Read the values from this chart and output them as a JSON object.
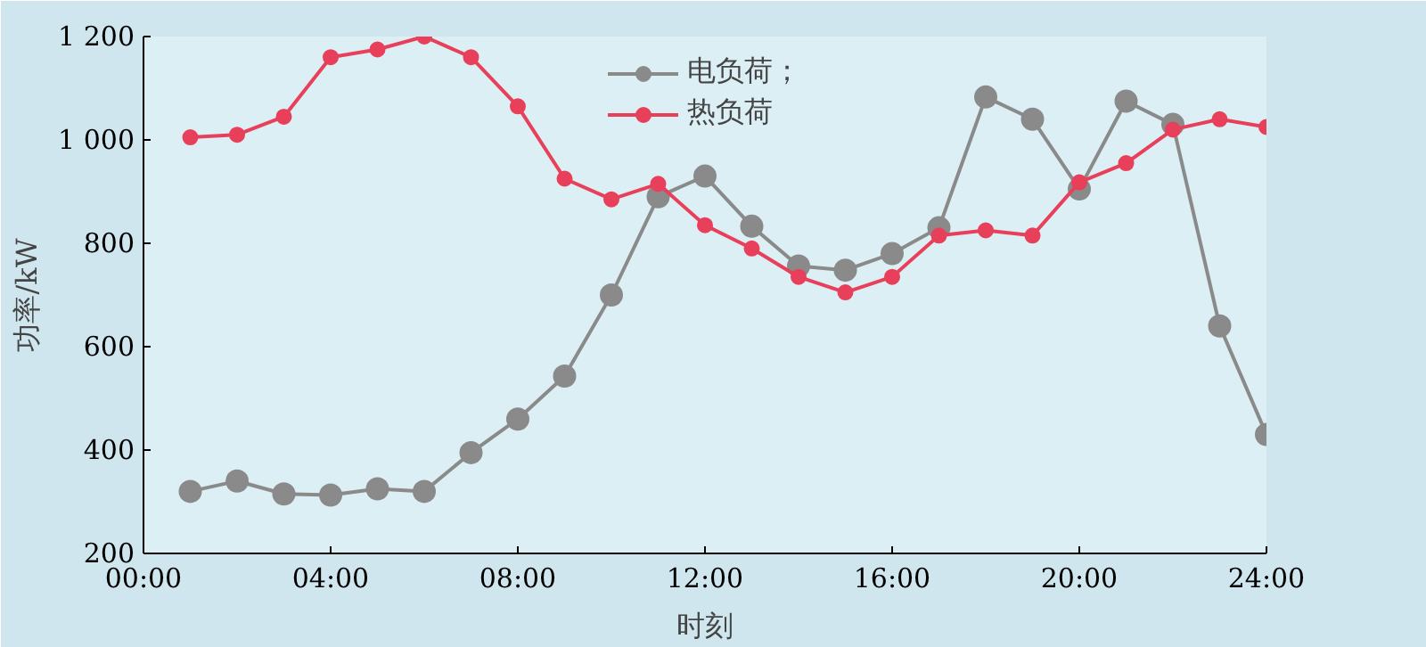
{
  "chart_data": {
    "type": "line",
    "xlabel": "时刻",
    "ylabel": "功率/kW",
    "x": [
      1,
      2,
      3,
      4,
      5,
      6,
      7,
      8,
      9,
      10,
      11,
      12,
      13,
      14,
      15,
      16,
      17,
      18,
      19,
      20,
      21,
      22,
      23,
      24
    ],
    "series": [
      {
        "name": "电负荷；",
        "color": "#8a8a8a",
        "values": [
          320,
          340,
          315,
          313,
          325,
          320,
          395,
          460,
          543,
          700,
          890,
          930,
          833,
          756,
          748,
          780,
          830,
          1083,
          1040,
          905,
          1075,
          1030,
          640,
          430
        ]
      },
      {
        "name": "热负荷",
        "color": "#e8405a",
        "values": [
          1005,
          1010,
          1045,
          1160,
          1175,
          1200,
          1160,
          1065,
          925,
          885,
          915,
          835,
          790,
          735,
          705,
          735,
          815,
          825,
          815,
          918,
          955,
          1020,
          1040,
          1025
        ]
      }
    ],
    "xlim": [
      0,
      24
    ],
    "xticks": [
      {
        "value": 0,
        "label": "00:00"
      },
      {
        "value": 4,
        "label": "04:00"
      },
      {
        "value": 8,
        "label": "08:00"
      },
      {
        "value": 12,
        "label": "12:00"
      },
      {
        "value": 16,
        "label": "16:00"
      },
      {
        "value": 20,
        "label": "20:00"
      },
      {
        "value": 24,
        "label": "24:00"
      }
    ],
    "ylim": [
      200,
      1200
    ],
    "yticks": [
      200,
      400,
      600,
      800,
      {
        "value": 1000,
        "label": "1 000"
      },
      {
        "value": 1200,
        "label": "1 200"
      }
    ],
    "grid": false,
    "legend": "top",
    "marker": "circle",
    "line_style": "solid"
  }
}
